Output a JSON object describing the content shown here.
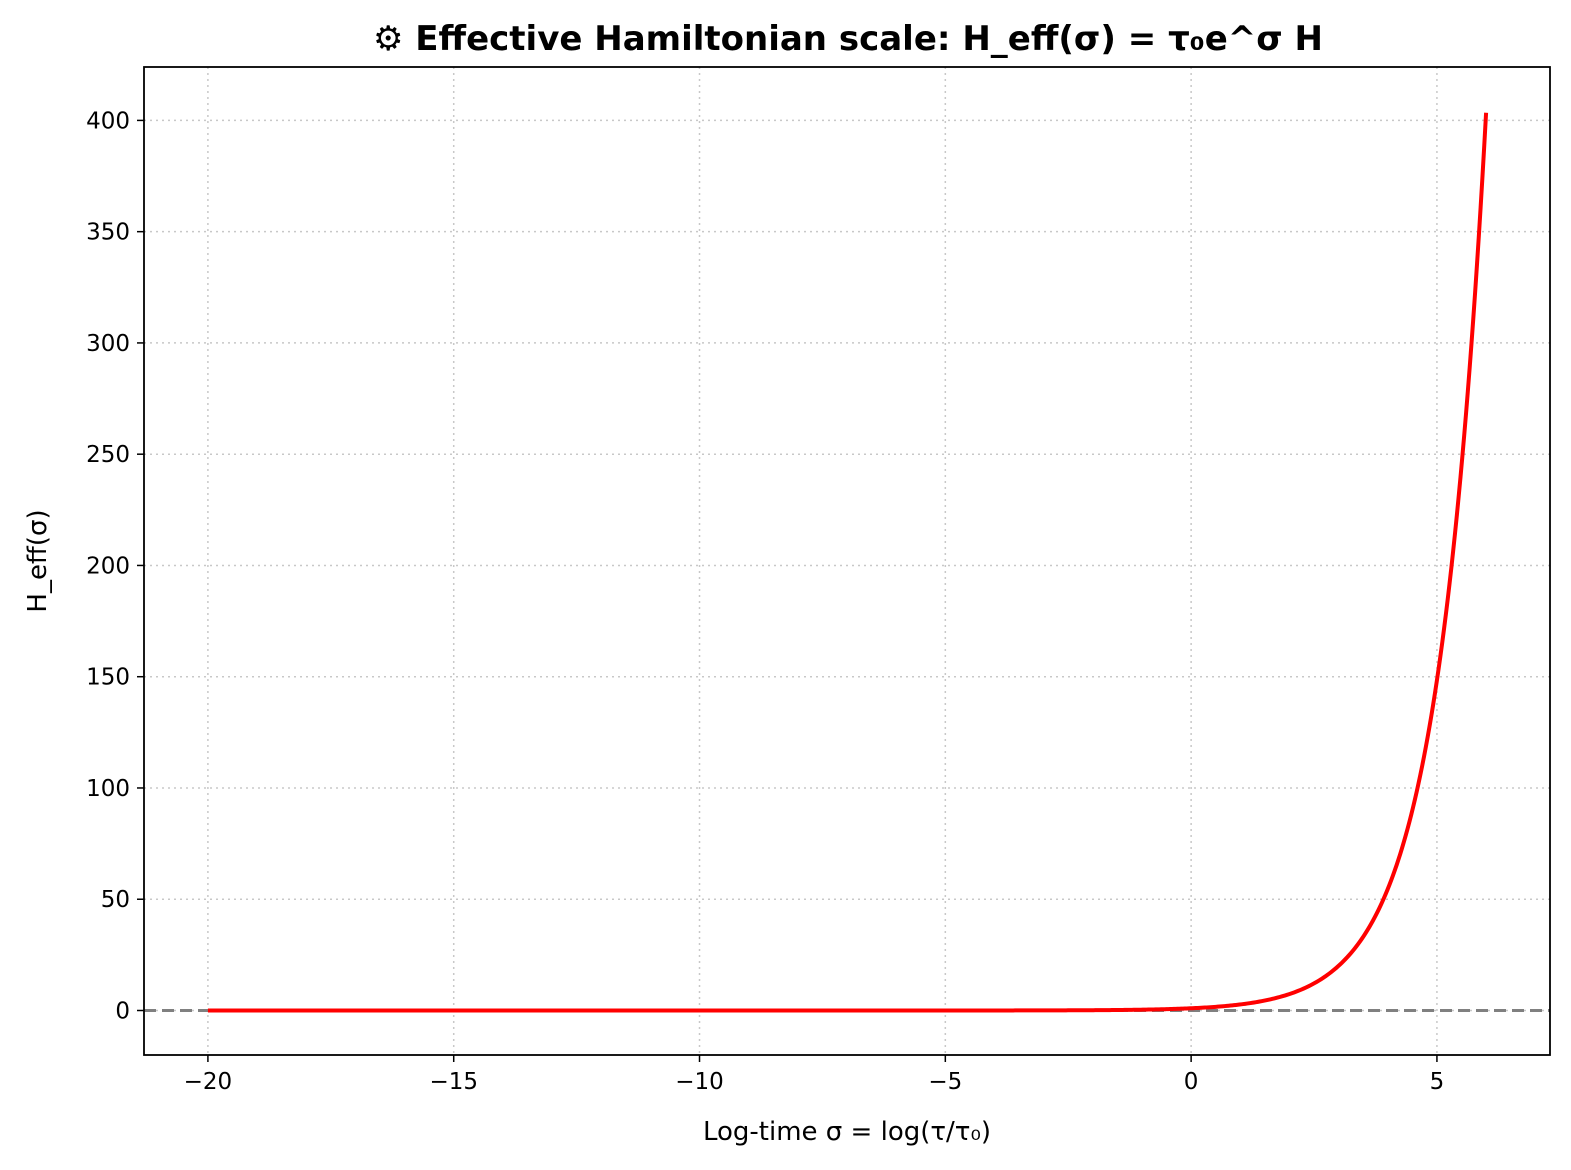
{
  "chart_data": {
    "type": "line",
    "title": "⚙ Effective Hamiltonian scale: H_eff(σ) = τ₀e^σ H",
    "xlabel": "Log-time σ = log(τ/τ₀)",
    "ylabel": "H_eff(σ)",
    "xlim": [
      -21.3,
      7.3
    ],
    "ylim": [
      -20,
      424
    ],
    "xticks": [
      -20,
      -15,
      -10,
      -5,
      0,
      5
    ],
    "xtick_labels": [
      "−20",
      "−15",
      "−10",
      "−5",
      "0",
      "5"
    ],
    "yticks": [
      0,
      50,
      100,
      150,
      200,
      250,
      300,
      350,
      400
    ],
    "ytick_labels": [
      "0",
      "50",
      "100",
      "150",
      "200",
      "250",
      "300",
      "350",
      "400"
    ],
    "grid": true,
    "series": [
      {
        "function": "exp(x)",
        "x_range": [
          -20,
          6
        ],
        "color": "#ff0000"
      }
    ],
    "reference_lines": [
      {
        "orientation": "horizontal",
        "y": 0,
        "style": "dashed",
        "color": "#808080"
      }
    ]
  }
}
